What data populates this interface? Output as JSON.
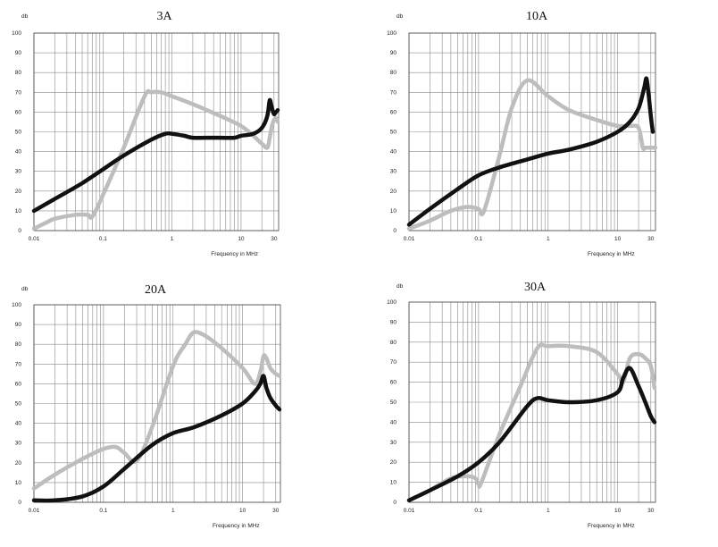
{
  "chart_data": [
    {
      "type": "line",
      "title": "3A",
      "ylabel": "db",
      "xlabel": "Frequency in MHz",
      "xscale": "log",
      "xlim": [
        0.01,
        35
      ],
      "ylim": [
        0,
        100
      ],
      "yticks": [
        "0",
        "10",
        "20",
        "30",
        "40",
        "50",
        "60",
        "70",
        "80",
        "90",
        "100"
      ],
      "xticks": [
        "0.01",
        "0.1",
        "1",
        "10",
        "30"
      ],
      "colors": {
        "dark": "#111111",
        "light": "#bdbdbd"
      },
      "series": [
        {
          "color_key": "dark",
          "x": [
            0.01,
            0.02,
            0.05,
            0.1,
            0.2,
            0.5,
            0.8,
            1,
            1.5,
            2,
            3,
            5,
            8,
            10,
            15,
            20,
            24,
            26,
            28,
            30,
            32,
            34
          ],
          "y": [
            10,
            16,
            24,
            31,
            38,
            46,
            49,
            49,
            48,
            47,
            47,
            47,
            47,
            48,
            49,
            52,
            58,
            66,
            62,
            59,
            60,
            61
          ]
        },
        {
          "color_key": "light",
          "x": [
            0.01,
            0.015,
            0.02,
            0.04,
            0.06,
            0.07,
            0.1,
            0.2,
            0.4,
            0.5,
            0.7,
            1,
            2,
            5,
            10,
            15,
            20,
            24,
            26,
            28,
            30,
            32,
            34
          ],
          "y": [
            1,
            4,
            6,
            8,
            8,
            7,
            18,
            42,
            68,
            70,
            70,
            68,
            64,
            58,
            53,
            48,
            44,
            42,
            47,
            53,
            56,
            57,
            55
          ]
        }
      ]
    },
    {
      "type": "line",
      "title": "10A",
      "ylabel": "db",
      "xlabel": "Frequency in MHz",
      "xscale": "log",
      "xlim": [
        0.01,
        35
      ],
      "ylim": [
        0,
        100
      ],
      "yticks": [
        "0",
        "10",
        "20",
        "30",
        "40",
        "50",
        "60",
        "70",
        "80",
        "90",
        "100"
      ],
      "xticks": [
        "0.01",
        "0.1",
        "1",
        "10",
        "30"
      ],
      "colors": {
        "dark": "#111111",
        "light": "#bdbdbd"
      },
      "series": [
        {
          "color_key": "dark",
          "x": [
            0.01,
            0.02,
            0.05,
            0.1,
            0.2,
            0.5,
            1,
            2,
            5,
            10,
            15,
            20,
            24,
            26,
            28,
            30,
            32
          ],
          "y": [
            3,
            11,
            21,
            28,
            32,
            36,
            39,
            41,
            45,
            50,
            55,
            62,
            72,
            77,
            68,
            58,
            50
          ]
        },
        {
          "color_key": "light",
          "x": [
            0.01,
            0.02,
            0.04,
            0.07,
            0.1,
            0.12,
            0.2,
            0.3,
            0.5,
            1,
            2,
            5,
            10,
            15,
            20,
            23,
            25,
            28,
            32,
            35
          ],
          "y": [
            1,
            5,
            10,
            12,
            11,
            10,
            38,
            62,
            76,
            68,
            61,
            56,
            53,
            53,
            52,
            42,
            42,
            42,
            42,
            42
          ]
        }
      ]
    },
    {
      "type": "line",
      "title": "20A",
      "ylabel": "db",
      "xlabel": "Frequency in MHz",
      "xscale": "log",
      "xlim": [
        0.01,
        35
      ],
      "ylim": [
        0,
        100
      ],
      "yticks": [
        "0",
        "10",
        "20",
        "30",
        "40",
        "50",
        "60",
        "70",
        "80",
        "90",
        "100"
      ],
      "xticks": [
        "0.01",
        "0.1",
        "1",
        "10",
        "30"
      ],
      "colors": {
        "dark": "#111111",
        "light": "#bdbdbd"
      },
      "series": [
        {
          "color_key": "dark",
          "x": [
            0.01,
            0.02,
            0.05,
            0.1,
            0.2,
            0.5,
            1,
            2,
            5,
            10,
            15,
            18,
            20,
            22,
            25,
            30,
            34
          ],
          "y": [
            1,
            1,
            3,
            8,
            17,
            29,
            35,
            38,
            44,
            50,
            56,
            60,
            64,
            58,
            53,
            49,
            47
          ]
        },
        {
          "color_key": "light",
          "x": [
            0.01,
            0.02,
            0.05,
            0.1,
            0.15,
            0.2,
            0.3,
            0.5,
            1,
            1.5,
            2,
            3,
            5,
            10,
            15,
            18,
            20,
            22,
            25,
            30,
            34
          ],
          "y": [
            7,
            14,
            22,
            27,
            28,
            25,
            21,
            38,
            69,
            80,
            86,
            84,
            78,
            68,
            60,
            66,
            74,
            73,
            68,
            65,
            64
          ]
        }
      ]
    },
    {
      "type": "line",
      "title": "30A",
      "ylabel": "db",
      "xlabel": "Frequency in MHz",
      "xscale": "log",
      "xlim": [
        0.01,
        35
      ],
      "ylim": [
        0,
        100
      ],
      "yticks": [
        "0",
        "10",
        "20",
        "30",
        "40",
        "50",
        "60",
        "70",
        "80",
        "90",
        "100"
      ],
      "xticks": [
        "0.01",
        "0.1",
        "1",
        "10",
        "30"
      ],
      "colors": {
        "dark": "#111111",
        "light": "#bdbdbd"
      },
      "series": [
        {
          "color_key": "dark",
          "x": [
            0.01,
            0.02,
            0.05,
            0.1,
            0.2,
            0.5,
            0.7,
            1,
            2,
            5,
            10,
            12,
            15,
            20,
            25,
            30,
            34
          ],
          "y": [
            1,
            6,
            13,
            20,
            30,
            48,
            52,
            51,
            50,
            51,
            55,
            62,
            67,
            58,
            50,
            43,
            40
          ]
        },
        {
          "color_key": "light",
          "x": [
            0.01,
            0.02,
            0.04,
            0.07,
            0.09,
            0.1,
            0.11,
            0.2,
            0.4,
            0.7,
            1,
            2,
            5,
            10,
            12,
            15,
            20,
            25,
            30,
            34
          ],
          "y": [
            1,
            6,
            12,
            13,
            12,
            9,
            10,
            34,
            58,
            77,
            78,
            78,
            75,
            64,
            60,
            72,
            74,
            72,
            68,
            57
          ]
        }
      ]
    }
  ]
}
